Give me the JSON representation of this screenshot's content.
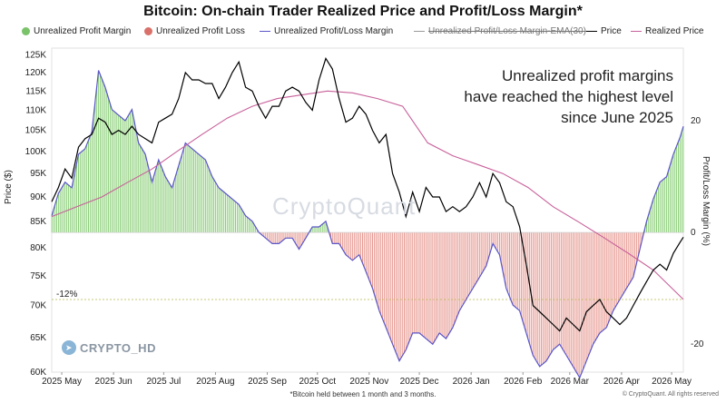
{
  "chart_data": {
    "type": "bar+line",
    "title": "Bitcoin: On-chain Trader Realized Price and Profit/Loss Margin*",
    "ylabel_left": "Price ($)",
    "ylabel_right": "Profit/Loss Margin (%)",
    "footnote": "*Bitcoin held between 1 month and 3 months.",
    "copyright": "© CryptoQuant. All rights reserved",
    "annotation": [
      "Unrealized profit margins",
      "have reached the highest level",
      "since June 2025"
    ],
    "threshold_label": "-12%",
    "threshold_value": -12,
    "watermark": "CryptoQuant",
    "handle": "CRYPTO_HD",
    "legend": [
      {
        "label": "Unrealized Profit Margin",
        "kind": "dot",
        "color": "#7ac36a",
        "struck": false
      },
      {
        "label": "Unrealized Profit Loss",
        "kind": "dot",
        "color": "#d9716a",
        "struck": false
      },
      {
        "label": "Unrealized Profit/Loss Margin",
        "kind": "line",
        "color": "#5a55c8",
        "struck": false
      },
      {
        "label": "Unrealized Profit/Loss Margin-EMA(30)",
        "kind": "line",
        "color": "#999999",
        "struck": true
      },
      {
        "label": "Price",
        "kind": "line",
        "color": "#000000",
        "struck": false
      },
      {
        "label": "Realized Price",
        "kind": "line",
        "color": "#c8609a",
        "struck": false
      }
    ],
    "y_left_ticks": [
      "125K",
      "120K",
      "115K",
      "110K",
      "105K",
      "100K",
      "95K",
      "90K",
      "85K",
      "80K",
      "75K",
      "70K",
      "65K",
      "60K"
    ],
    "y_right_ticks": [
      "20",
      "0",
      "-20"
    ],
    "x_ticks": [
      "2025 May",
      "2025 Jun",
      "2025 Jul",
      "2025 Aug",
      "2025 Sep",
      "2025 Oct",
      "2025 Nov",
      "2025 Dec",
      "2026 Jan",
      "2026 Feb",
      "2026 Mar",
      "2026 Apr",
      "2026 May"
    ],
    "y_left_scale": "log",
    "y_left_range": [
      60000,
      127000
    ],
    "y_right_range": [
      -25,
      33
    ],
    "x_range": [
      "2025-04-25",
      "2026-05-08"
    ],
    "margin_series": [
      [
        "2025-04-25",
        3
      ],
      [
        "2025-04-29",
        7
      ],
      [
        "2025-05-03",
        9
      ],
      [
        "2025-05-07",
        8
      ],
      [
        "2025-05-11",
        14
      ],
      [
        "2025-05-15",
        15
      ],
      [
        "2025-05-19",
        18
      ],
      [
        "2025-05-23",
        29
      ],
      [
        "2025-05-27",
        26
      ],
      [
        "2025-05-31",
        22
      ],
      [
        "2025-06-04",
        21
      ],
      [
        "2025-06-08",
        20
      ],
      [
        "2025-06-12",
        22
      ],
      [
        "2025-06-16",
        16
      ],
      [
        "2025-06-20",
        14
      ],
      [
        "2025-06-24",
        9
      ],
      [
        "2025-06-28",
        13
      ],
      [
        "2025-07-02",
        10
      ],
      [
        "2025-07-06",
        8
      ],
      [
        "2025-07-10",
        12
      ],
      [
        "2025-07-14",
        16
      ],
      [
        "2025-07-18",
        15
      ],
      [
        "2025-07-22",
        14
      ],
      [
        "2025-07-26",
        13
      ],
      [
        "2025-07-30",
        10
      ],
      [
        "2025-08-03",
        8
      ],
      [
        "2025-08-07",
        7
      ],
      [
        "2025-08-11",
        6
      ],
      [
        "2025-08-15",
        5
      ],
      [
        "2025-08-19",
        3
      ],
      [
        "2025-08-23",
        2
      ],
      [
        "2025-08-27",
        0
      ],
      [
        "2025-08-31",
        -1
      ],
      [
        "2025-09-04",
        -2
      ],
      [
        "2025-09-08",
        -2
      ],
      [
        "2025-09-12",
        -1
      ],
      [
        "2025-09-16",
        -1
      ],
      [
        "2025-09-20",
        -3
      ],
      [
        "2025-09-24",
        -1
      ],
      [
        "2025-09-28",
        1
      ],
      [
        "2025-10-02",
        1
      ],
      [
        "2025-10-06",
        2
      ],
      [
        "2025-10-10",
        -2
      ],
      [
        "2025-10-14",
        -2
      ],
      [
        "2025-10-18",
        -4
      ],
      [
        "2025-10-22",
        -5
      ],
      [
        "2025-10-26",
        -4
      ],
      [
        "2025-10-30",
        -7
      ],
      [
        "2025-11-03",
        -10
      ],
      [
        "2025-11-07",
        -14
      ],
      [
        "2025-11-11",
        -17
      ],
      [
        "2025-11-15",
        -20
      ],
      [
        "2025-11-19",
        -23
      ],
      [
        "2025-11-23",
        -21
      ],
      [
        "2025-11-27",
        -18
      ],
      [
        "2025-12-01",
        -18
      ],
      [
        "2025-12-05",
        -19
      ],
      [
        "2025-12-09",
        -20
      ],
      [
        "2025-12-13",
        -18
      ],
      [
        "2025-12-17",
        -19
      ],
      [
        "2025-12-21",
        -17
      ],
      [
        "2025-12-25",
        -14
      ],
      [
        "2025-12-29",
        -12
      ],
      [
        "2026-01-02",
        -10
      ],
      [
        "2026-01-06",
        -8
      ],
      [
        "2026-01-10",
        -6
      ],
      [
        "2026-01-14",
        -2
      ],
      [
        "2026-01-18",
        -4
      ],
      [
        "2026-01-22",
        -10
      ],
      [
        "2026-01-26",
        -13
      ],
      [
        "2026-01-30",
        -14
      ],
      [
        "2026-02-03",
        -18
      ],
      [
        "2026-02-07",
        -22
      ],
      [
        "2026-02-11",
        -24
      ],
      [
        "2026-02-15",
        -23
      ],
      [
        "2026-02-19",
        -21
      ],
      [
        "2026-02-23",
        -20
      ],
      [
        "2026-02-27",
        -22
      ],
      [
        "2026-03-03",
        -24
      ],
      [
        "2026-03-07",
        -26
      ],
      [
        "2026-03-11",
        -23
      ],
      [
        "2026-03-15",
        -20
      ],
      [
        "2026-03-19",
        -18
      ],
      [
        "2026-03-23",
        -17
      ],
      [
        "2026-03-27",
        -14
      ],
      [
        "2026-03-31",
        -12
      ],
      [
        "2026-04-04",
        -10
      ],
      [
        "2026-04-08",
        -8
      ],
      [
        "2026-04-12",
        -3
      ],
      [
        "2026-04-16",
        2
      ],
      [
        "2026-04-20",
        6
      ],
      [
        "2026-04-24",
        9
      ],
      [
        "2026-04-28",
        10
      ],
      [
        "2026-05-02",
        14
      ],
      [
        "2026-05-06",
        17
      ],
      [
        "2026-05-08",
        19
      ]
    ],
    "price_series": [
      [
        "2025-04-25",
        89000
      ],
      [
        "2025-04-29",
        92000
      ],
      [
        "2025-05-03",
        96000
      ],
      [
        "2025-05-07",
        94000
      ],
      [
        "2025-05-11",
        101000
      ],
      [
        "2025-05-15",
        103000
      ],
      [
        "2025-05-19",
        104000
      ],
      [
        "2025-05-23",
        108000
      ],
      [
        "2025-05-27",
        107000
      ],
      [
        "2025-05-31",
        104000
      ],
      [
        "2025-06-04",
        105000
      ],
      [
        "2025-06-08",
        104000
      ],
      [
        "2025-06-12",
        106000
      ],
      [
        "2025-06-16",
        104000
      ],
      [
        "2025-06-20",
        103000
      ],
      [
        "2025-06-24",
        102000
      ],
      [
        "2025-06-28",
        107000
      ],
      [
        "2025-07-02",
        108000
      ],
      [
        "2025-07-06",
        109000
      ],
      [
        "2025-07-10",
        113000
      ],
      [
        "2025-07-14",
        120000
      ],
      [
        "2025-07-18",
        118000
      ],
      [
        "2025-07-22",
        118000
      ],
      [
        "2025-07-26",
        117000
      ],
      [
        "2025-07-30",
        117000
      ],
      [
        "2025-08-03",
        113000
      ],
      [
        "2025-08-07",
        116000
      ],
      [
        "2025-08-11",
        120000
      ],
      [
        "2025-08-15",
        123000
      ],
      [
        "2025-08-19",
        116000
      ],
      [
        "2025-08-23",
        115000
      ],
      [
        "2025-08-27",
        111000
      ],
      [
        "2025-08-31",
        108000
      ],
      [
        "2025-09-04",
        111000
      ],
      [
        "2025-09-08",
        111000
      ],
      [
        "2025-09-12",
        115000
      ],
      [
        "2025-09-16",
        116000
      ],
      [
        "2025-09-20",
        115000
      ],
      [
        "2025-09-24",
        112000
      ],
      [
        "2025-09-28",
        110000
      ],
      [
        "2025-10-02",
        118000
      ],
      [
        "2025-10-06",
        124000
      ],
      [
        "2025-10-10",
        121000
      ],
      [
        "2025-10-14",
        113000
      ],
      [
        "2025-10-18",
        107000
      ],
      [
        "2025-10-22",
        108000
      ],
      [
        "2025-10-26",
        111000
      ],
      [
        "2025-10-30",
        109000
      ],
      [
        "2025-11-03",
        105000
      ],
      [
        "2025-11-07",
        102000
      ],
      [
        "2025-11-11",
        104000
      ],
      [
        "2025-11-15",
        95000
      ],
      [
        "2025-11-19",
        91000
      ],
      [
        "2025-11-23",
        86000
      ],
      [
        "2025-11-27",
        91000
      ],
      [
        "2025-12-01",
        87000
      ],
      [
        "2025-12-05",
        92000
      ],
      [
        "2025-12-09",
        90000
      ],
      [
        "2025-12-13",
        90000
      ],
      [
        "2025-12-17",
        87000
      ],
      [
        "2025-12-21",
        88000
      ],
      [
        "2025-12-25",
        87000
      ],
      [
        "2025-12-29",
        88000
      ],
      [
        "2026-01-02",
        90000
      ],
      [
        "2026-01-06",
        93000
      ],
      [
        "2026-01-10",
        90000
      ],
      [
        "2026-01-14",
        95000
      ],
      [
        "2026-01-18",
        93000
      ],
      [
        "2026-01-22",
        89000
      ],
      [
        "2026-01-26",
        88000
      ],
      [
        "2026-01-30",
        84000
      ],
      [
        "2026-02-03",
        77000
      ],
      [
        "2026-02-07",
        70000
      ],
      [
        "2026-02-11",
        69000
      ],
      [
        "2026-02-15",
        68000
      ],
      [
        "2026-02-19",
        67000
      ],
      [
        "2026-02-23",
        66000
      ],
      [
        "2026-02-27",
        68000
      ],
      [
        "2026-03-03",
        67000
      ],
      [
        "2026-03-07",
        66000
      ],
      [
        "2026-03-11",
        69000
      ],
      [
        "2026-03-15",
        70000
      ],
      [
        "2026-03-19",
        71000
      ],
      [
        "2026-03-23",
        69000
      ],
      [
        "2026-03-27",
        68000
      ],
      [
        "2026-03-31",
        67000
      ],
      [
        "2026-04-04",
        68000
      ],
      [
        "2026-04-08",
        70000
      ],
      [
        "2026-04-12",
        72000
      ],
      [
        "2026-04-16",
        74000
      ],
      [
        "2026-04-20",
        76000
      ],
      [
        "2026-04-24",
        77000
      ],
      [
        "2026-04-28",
        76000
      ],
      [
        "2026-05-02",
        79000
      ],
      [
        "2026-05-06",
        81000
      ],
      [
        "2026-05-08",
        82000
      ]
    ],
    "realized_price_series": [
      [
        "2025-04-25",
        86000
      ],
      [
        "2025-05-10",
        88000
      ],
      [
        "2025-05-25",
        90000
      ],
      [
        "2025-06-09",
        93000
      ],
      [
        "2025-06-24",
        96000
      ],
      [
        "2025-07-09",
        100000
      ],
      [
        "2025-07-24",
        104000
      ],
      [
        "2025-08-08",
        108000
      ],
      [
        "2025-08-23",
        111000
      ],
      [
        "2025-09-07",
        113000
      ],
      [
        "2025-09-22",
        114000
      ],
      [
        "2025-10-07",
        115000
      ],
      [
        "2025-10-22",
        114500
      ],
      [
        "2025-11-06",
        113000
      ],
      [
        "2025-11-21",
        111000
      ],
      [
        "2025-12-06",
        102000
      ],
      [
        "2025-12-21",
        99000
      ],
      [
        "2026-01-05",
        97000
      ],
      [
        "2026-01-20",
        95000
      ],
      [
        "2026-02-04",
        92000
      ],
      [
        "2026-02-19",
        88000
      ],
      [
        "2026-03-06",
        85000
      ],
      [
        "2026-03-21",
        82000
      ],
      [
        "2026-04-05",
        79000
      ],
      [
        "2026-04-20",
        76000
      ],
      [
        "2026-05-08",
        71000
      ]
    ]
  }
}
